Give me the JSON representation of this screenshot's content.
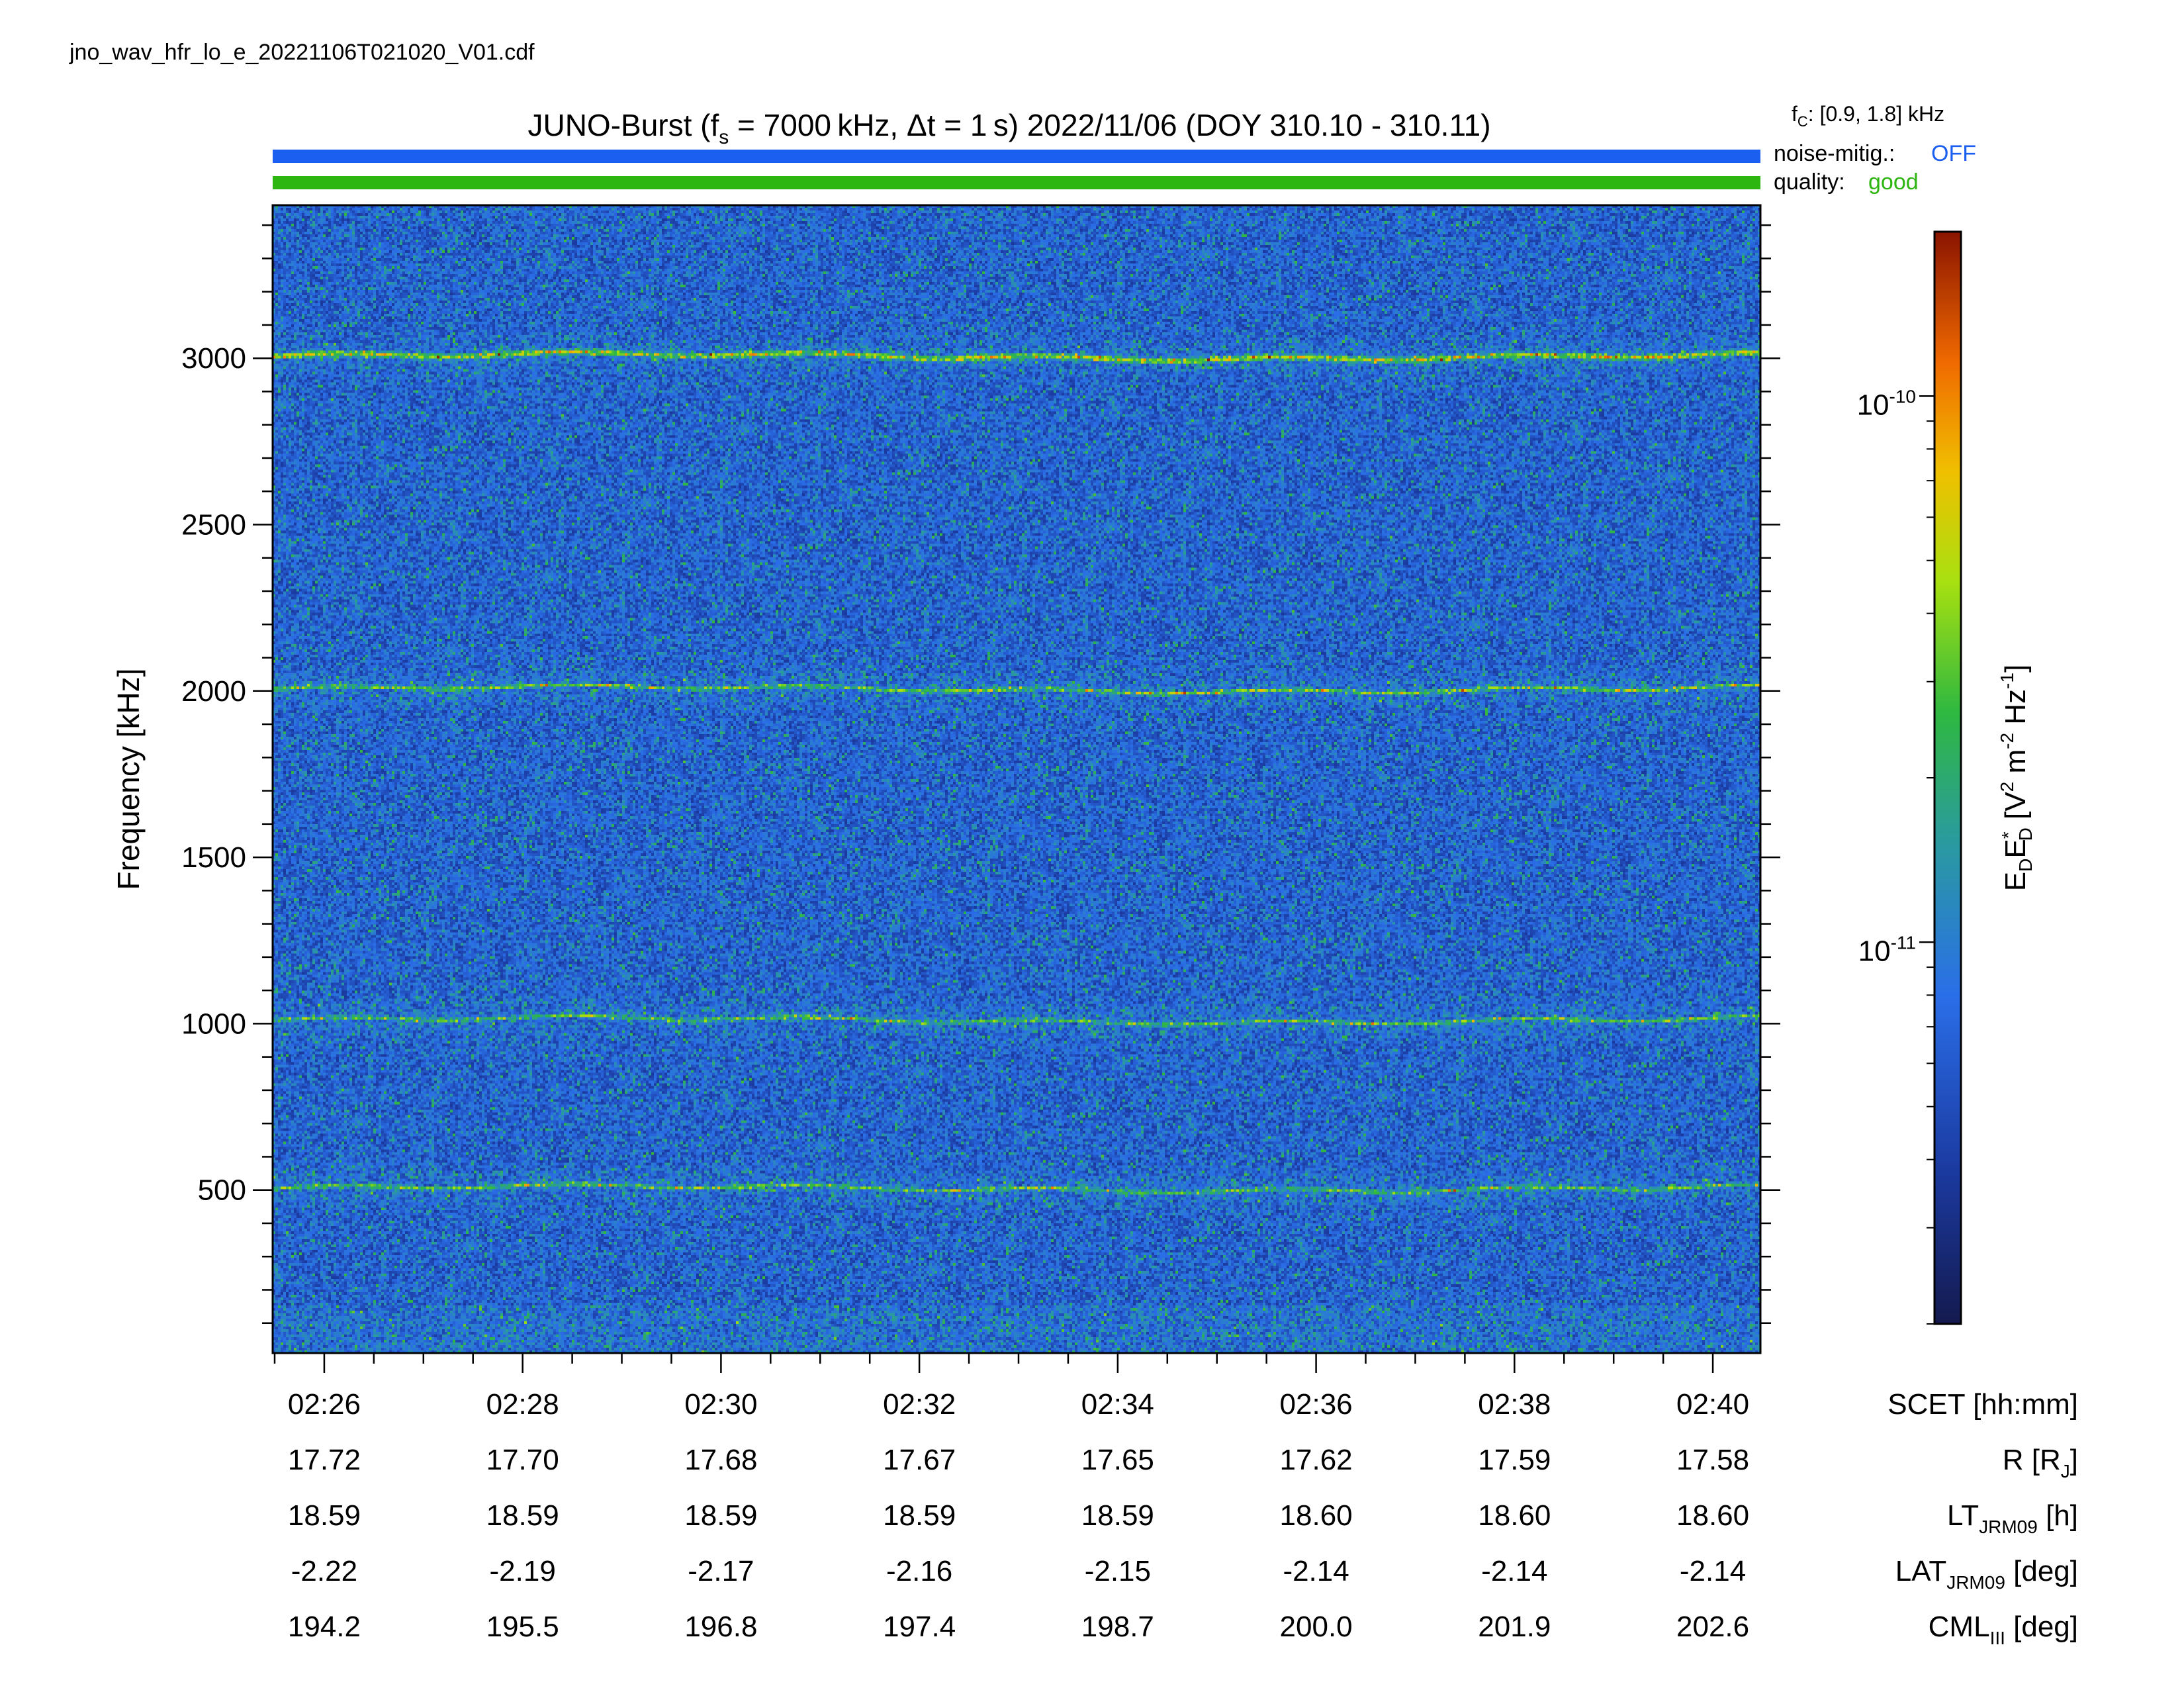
{
  "filename": "jno_wav_hfr_lo_e_20221106T021020_V01.cdf",
  "title": {
    "prefix": "JUNO-Burst (f",
    "sub": "s",
    "rest": " = 7000 kHz, Δt = 1 s)  2022/11/06 (DOY 310.10 - 310.11)"
  },
  "status": {
    "fc_label": "f",
    "fc_sub": "C",
    "fc_value": ": [0.9, 1.8] kHz",
    "noise_label": "noise-mitig.:",
    "noise_value": "OFF",
    "noise_color": "#1a5ff0",
    "quality_label": "quality:",
    "quality_value": "good",
    "quality_color": "#2db510"
  },
  "chart_data": {
    "type": "heatmap",
    "ylabel": "Frequency [kHz]",
    "ylim": [
      10,
      3460
    ],
    "y_ticks": [
      500,
      1000,
      1500,
      2000,
      2500,
      3000
    ],
    "x_ticks": [
      "02:26",
      "02:28",
      "02:30",
      "02:32",
      "02:34",
      "02:36",
      "02:38",
      "02:40"
    ],
    "x_tick_minutes": [
      26,
      28,
      30,
      32,
      34,
      36,
      38,
      40
    ],
    "x_range_minutes": [
      25.48,
      40.48
    ],
    "emission_bands_khz": [
      505,
      1010,
      2005,
      3005
    ],
    "colorbar": {
      "label": "E",
      "label_sub1": "D",
      "label_mid": "E",
      "label_sup_star": "*",
      "label_sub2": "D",
      "label_units_prefix": " [V",
      "label_units_sup1": "2",
      "label_units_mid": " m",
      "label_units_sup2": "-2",
      "label_units_hz": " Hz",
      "label_units_sup3": "-1",
      "label_units_end": "]",
      "scale": "log",
      "range": [
        2e-12,
        2e-10
      ],
      "ticks": [
        {
          "base": "10",
          "exp": "-10",
          "value": 1e-10
        },
        {
          "base": "10",
          "exp": "-11",
          "value": 1e-11
        }
      ]
    },
    "ephemeris": {
      "rows": [
        {
          "label": "SCET [hh:mm]",
          "values": [
            "02:26",
            "02:28",
            "02:30",
            "02:32",
            "02:34",
            "02:36",
            "02:38",
            "02:40"
          ]
        },
        {
          "label": "R [R",
          "label_sub": "J",
          "label_end": "]",
          "values": [
            "17.72",
            "17.70",
            "17.68",
            "17.67",
            "17.65",
            "17.62",
            "17.59",
            "17.58"
          ]
        },
        {
          "label": "LT",
          "label_sub": "JRM09",
          "label_end": " [h]",
          "values": [
            "18.59",
            "18.59",
            "18.59",
            "18.59",
            "18.59",
            "18.60",
            "18.60",
            "18.60"
          ]
        },
        {
          "label": "LAT",
          "label_sub": "JRM09",
          "label_end": " [deg]",
          "values": [
            "-2.22",
            "-2.19",
            "-2.17",
            "-2.16",
            "-2.15",
            "-2.14",
            "-2.14",
            "-2.14"
          ]
        },
        {
          "label": "CML",
          "label_sub": "III",
          "label_end": " [deg]",
          "values": [
            "194.2",
            "195.5",
            "196.8",
            "197.4",
            "198.7",
            "200.0",
            "201.9",
            "202.6"
          ]
        }
      ]
    }
  }
}
